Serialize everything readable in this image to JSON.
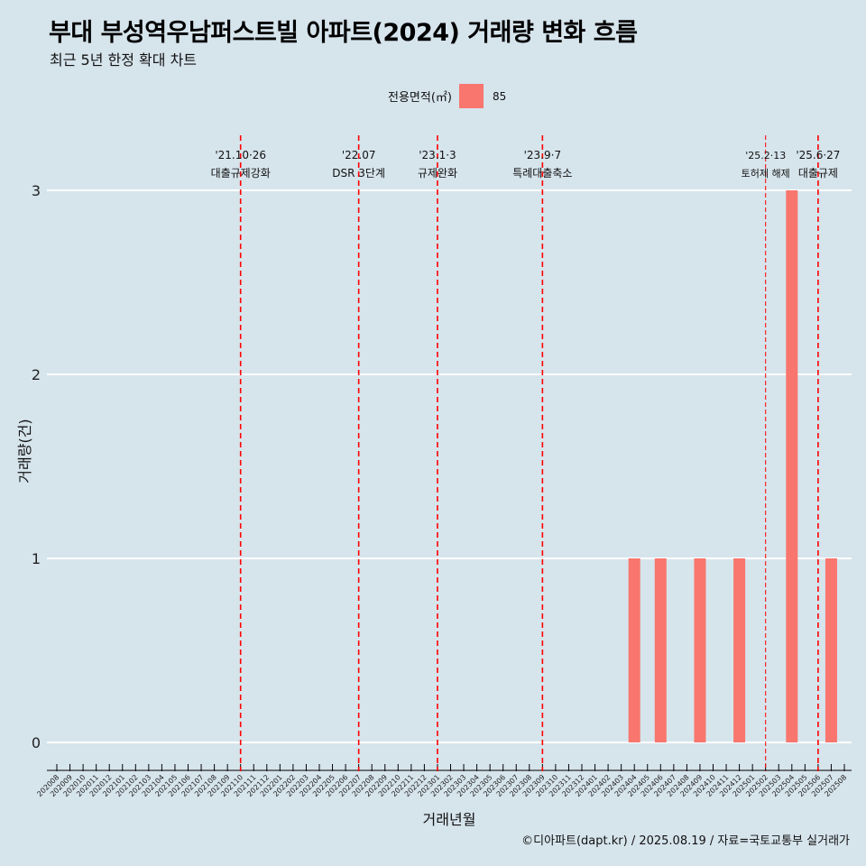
{
  "header": {
    "title": "부대 부성역우남퍼스트빌 아파트(2024) 거래량 변화 흐름",
    "subtitle": "최근 5년 한정 확대 차트"
  },
  "legend": {
    "title": "전용면적(㎡)",
    "entry": "85"
  },
  "caption": "©디아파트(dapt.kr) / 2025.08.19 / 자료=국토교통부 실거래가",
  "colors": {
    "bar": "#f8766d",
    "event_line": "#ff0000",
    "background": "#d6e4ec",
    "grid": "#ffffff"
  },
  "chart_data": {
    "type": "bar",
    "title": "부대 부성역우남퍼스트빌 아파트(2024) 거래량 변화 흐름",
    "xlabel": "거래년월",
    "ylabel": "거래량(건)",
    "ylim": [
      0,
      3
    ],
    "yticks": [
      0,
      1,
      2,
      3
    ],
    "grid": true,
    "legend_position": "top",
    "categories": [
      "202008",
      "202009",
      "202010",
      "202011",
      "202012",
      "202101",
      "202102",
      "202103",
      "202104",
      "202105",
      "202106",
      "202107",
      "202108",
      "202109",
      "202110",
      "202111",
      "202112",
      "202201",
      "202202",
      "202203",
      "202204",
      "202205",
      "202206",
      "202207",
      "202208",
      "202209",
      "202210",
      "202211",
      "202212",
      "202301",
      "202302",
      "202303",
      "202304",
      "202305",
      "202306",
      "202307",
      "202308",
      "202309",
      "202310",
      "202311",
      "202312",
      "202401",
      "202402",
      "202403",
      "202404",
      "202405",
      "202406",
      "202407",
      "202408",
      "202409",
      "202410",
      "202411",
      "202412",
      "202501",
      "202502",
      "202503",
      "202504",
      "202505",
      "202506",
      "202507",
      "202508"
    ],
    "series": [
      {
        "name": "85",
        "points": [
          {
            "x": "202404",
            "y": 1
          },
          {
            "x": "202406",
            "y": 1
          },
          {
            "x": "202409",
            "y": 1
          },
          {
            "x": "202412",
            "y": 1
          },
          {
            "x": "202504",
            "y": 3
          },
          {
            "x": "202507",
            "y": 1
          }
        ]
      }
    ],
    "events": [
      {
        "x": "202110",
        "date": "'21.10·26",
        "label": "대출규제강화",
        "style": "dashed"
      },
      {
        "x": "202207",
        "date": "'22.07",
        "label": "DSR 3단계",
        "style": "dashed"
      },
      {
        "x": "202301",
        "date": "'23.1·3",
        "label": "규제완화",
        "style": "dashed"
      },
      {
        "x": "202309",
        "date": "'23.9·7",
        "label": "특례대출축소",
        "style": "dashed"
      },
      {
        "x": "202502",
        "date": "'25.2·13",
        "label": "토허제 해제",
        "style": "thin",
        "small": true
      },
      {
        "x": "202506",
        "date": "'25.6·27",
        "label": "대출규제",
        "style": "dashed"
      }
    ]
  }
}
